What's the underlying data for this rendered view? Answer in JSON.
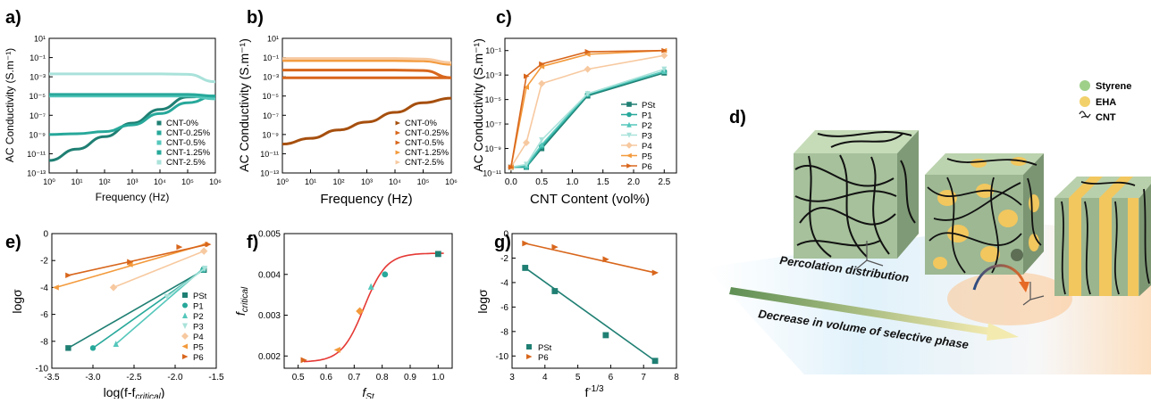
{
  "colors": {
    "teal_dark": "#1f7f73",
    "teal": "#27a89a",
    "teal_light": "#55c7bb",
    "teal_pale": "#a9e2da",
    "peach": "#f7c9a0",
    "orange": "#f39a3c",
    "brown": "#a64f0e",
    "orange_dark": "#d8661c",
    "styrene": "#9fd08a",
    "eha": "#f2d16b",
    "fit_red": "#e53935"
  },
  "panels": {
    "a": {
      "label": "a)",
      "ylabel": "AC Conductivity (S.m⁻¹)",
      "xlabel": "Frequency (Hz)",
      "xticks": [
        "10⁰",
        "10¹",
        "10²",
        "10³",
        "10⁴",
        "10⁵",
        "10⁶"
      ],
      "yticks": [
        "10¹",
        "10⁻¹",
        "10⁻³",
        "10⁻⁵",
        "10⁻⁷",
        "10⁻⁹",
        "10⁻¹¹",
        "10⁻¹³"
      ],
      "legend": [
        "CNT-0%",
        "CNT-0.25%",
        "CNT-0.5%",
        "CNT-1.25%",
        "CNT-2.5%"
      ]
    },
    "b": {
      "label": "b)",
      "ylabel": "AC Conductivity (S.m⁻¹)",
      "xlabel": "Frequency (Hz)",
      "xticks": [
        "10⁰",
        "10¹",
        "10²",
        "10³",
        "10⁴",
        "10⁵",
        "10⁶"
      ],
      "yticks": [
        "10¹",
        "10⁻¹",
        "10⁻³",
        "10⁻⁵",
        "10⁻⁷",
        "10⁻⁹",
        "10⁻¹¹",
        "10⁻¹³"
      ],
      "legend": [
        "CNT-0%",
        "CNT-0.25%",
        "CNT-0.5%",
        "CNT-1.25%",
        "CNT-2.5%"
      ]
    },
    "c": {
      "label": "c)",
      "ylabel": "AC Conductivity (S.m⁻¹)",
      "xlabel": "CNT Content (vol%)",
      "xticks": [
        "0.0",
        "0.5",
        "1.0",
        "1.5",
        "2.0",
        "2.5"
      ],
      "yticks": [
        "10⁻¹",
        "10⁻³",
        "10⁻⁵",
        "10⁻⁷",
        "10⁻⁹",
        "10⁻¹¹"
      ],
      "legend": [
        "PSt",
        "P1",
        "P2",
        "P3",
        "P4",
        "P5",
        "P6"
      ]
    },
    "d": {
      "label": "d)",
      "legend": [
        "Styrene",
        "EHA",
        "CNT"
      ],
      "text_percolation": "Percolation distribution",
      "text_decrease": "Decrease in volume of selective phase"
    },
    "e": {
      "label": "e)",
      "ylabel": "logσ",
      "xlabel": "log(f-f",
      "xlabel_sub": "critical",
      "xlabel_end": ")",
      "xticks": [
        "-3.5",
        "-3.0",
        "-2.5",
        "-2.0",
        "-1.5"
      ],
      "yticks": [
        "0",
        "-2",
        "-4",
        "-6",
        "-8",
        "-10"
      ],
      "legend": [
        "PSt",
        "P1",
        "P2",
        "P3",
        "P4",
        "P5",
        "P6"
      ]
    },
    "f": {
      "label": "f)",
      "ylabel": "f",
      "ylabel_sub": "critical",
      "xlabel": "f",
      "xlabel_sub": "St",
      "xticks": [
        "0.5",
        "0.6",
        "0.7",
        "0.8",
        "0.9",
        "1.0"
      ],
      "yticks": [
        "0.005",
        "0.004",
        "0.003",
        "0.002"
      ]
    },
    "g": {
      "label": "g)",
      "ylabel": "logσ",
      "xlabel": "f",
      "xlabel_sup": "-1/3",
      "xticks": [
        "3",
        "4",
        "5",
        "6",
        "7",
        "8"
      ],
      "yticks": [
        "0",
        "-2",
        "-4",
        "-6",
        "-8",
        "-10"
      ],
      "legend": [
        "PSt",
        "P6"
      ]
    }
  },
  "chart_data": [
    {
      "panel": "a",
      "type": "line",
      "xscale": "log",
      "yscale": "log",
      "xlim": [
        1,
        1000000
      ],
      "ylim": [
        1e-13,
        10
      ],
      "series": [
        {
          "name": "CNT-0%",
          "x": [
            1,
            10,
            100,
            1000,
            10000,
            100000,
            1000000
          ],
          "y": [
            2e-12,
            3e-11,
            6e-10,
            1.5e-08,
            4e-07,
            8e-06,
            1e-05
          ]
        },
        {
          "name": "CNT-0.25%",
          "x": [
            1,
            10,
            100,
            1000,
            10000,
            100000,
            1000000
          ],
          "y": [
            1e-09,
            1.2e-09,
            2e-09,
            1e-08,
            1.5e-07,
            2e-06,
            1e-05
          ]
        },
        {
          "name": "CNT-0.5%",
          "x": [
            1,
            10,
            100,
            1000,
            10000,
            100000,
            1000000
          ],
          "y": [
            1e-05,
            1e-05,
            1e-05,
            1e-05,
            1e-05,
            1e-05,
            5e-06
          ]
        },
        {
          "name": "CNT-1.25%",
          "x": [
            1,
            10,
            100,
            1000,
            10000,
            100000,
            1000000
          ],
          "y": [
            1.5e-05,
            1.5e-05,
            1.5e-05,
            1.5e-05,
            1.5e-05,
            1.5e-05,
            1e-05
          ]
        },
        {
          "name": "CNT-2.5%",
          "x": [
            1,
            10,
            100,
            1000,
            10000,
            100000,
            1000000
          ],
          "y": [
            0.002,
            0.002,
            0.002,
            0.002,
            0.002,
            0.0018,
            0.0003
          ]
        }
      ]
    },
    {
      "panel": "b",
      "type": "line",
      "xscale": "log",
      "yscale": "log",
      "xlim": [
        1,
        1000000
      ],
      "ylim": [
        1e-13,
        10
      ],
      "series": [
        {
          "name": "CNT-0%",
          "x": [
            1,
            10,
            100,
            1000,
            10000,
            100000,
            1000000
          ],
          "y": [
            1e-10,
            4e-10,
            3e-09,
            2e-08,
            2e-07,
            2e-06,
            6e-06
          ]
        },
        {
          "name": "CNT-0.25%",
          "x": [
            1,
            10,
            100,
            1000,
            10000,
            100000,
            1000000
          ],
          "y": [
            0.0008,
            0.0008,
            0.0008,
            0.0008,
            0.0008,
            0.0008,
            0.0008
          ]
        },
        {
          "name": "CNT-0.5%",
          "x": [
            1,
            10,
            100,
            1000,
            10000,
            100000,
            1000000
          ],
          "y": [
            0.005,
            0.005,
            0.005,
            0.005,
            0.005,
            0.0045,
            0.0008
          ]
        },
        {
          "name": "CNT-1.25%",
          "x": [
            1,
            10,
            100,
            1000,
            10000,
            100000,
            1000000
          ],
          "y": [
            0.05,
            0.05,
            0.05,
            0.05,
            0.05,
            0.045,
            0.02
          ]
        },
        {
          "name": "CNT-2.5%",
          "x": [
            1,
            10,
            100,
            1000,
            10000,
            100000,
            1000000
          ],
          "y": [
            0.08,
            0.08,
            0.08,
            0.08,
            0.08,
            0.07,
            0.03
          ]
        }
      ]
    },
    {
      "panel": "c",
      "type": "line",
      "xscale": "linear",
      "yscale": "log",
      "xlim": [
        -0.1,
        2.7
      ],
      "ylim": [
        1e-11,
        1
      ],
      "x": [
        0,
        0.25,
        0.5,
        1.25,
        2.5
      ],
      "series": [
        {
          "name": "PSt",
          "y": [
            3e-11,
            3e-11,
            1e-09,
            2e-05,
            0.0015
          ]
        },
        {
          "name": "P1",
          "y": [
            3e-11,
            3e-11,
            1.5e-09,
            2.5e-05,
            0.002
          ]
        },
        {
          "name": "P2",
          "y": [
            3e-11,
            4e-11,
            2e-09,
            3e-05,
            0.002
          ]
        },
        {
          "name": "P3",
          "y": [
            3e-11,
            5e-11,
            5e-09,
            3e-05,
            0.003
          ]
        },
        {
          "name": "P4",
          "y": [
            3e-11,
            3e-09,
            0.0002,
            0.003,
            0.04
          ]
        },
        {
          "name": "P5",
          "y": [
            3e-11,
            0.0001,
            0.005,
            0.05,
            0.1
          ]
        },
        {
          "name": "P6",
          "y": [
            3e-11,
            0.0008,
            0.008,
            0.08,
            0.1
          ]
        }
      ]
    },
    {
      "panel": "e",
      "type": "scatter",
      "xlim": [
        -3.5,
        -1.5
      ],
      "ylim": [
        -10,
        0
      ],
      "series": [
        {
          "name": "PSt",
          "x": [
            -3.3,
            -1.65
          ],
          "y": [
            -8.5,
            -2.7
          ]
        },
        {
          "name": "P1",
          "x": [
            -3.0,
            -1.66
          ],
          "y": [
            -8.5,
            -2.7
          ]
        },
        {
          "name": "P2",
          "x": [
            -2.72,
            -1.66
          ],
          "y": [
            -8.2,
            -2.6
          ]
        },
        {
          "name": "P3",
          "x": [
            -2.1,
            -1.64
          ],
          "y": [
            -4.7,
            -2.6
          ]
        },
        {
          "name": "P4",
          "x": [
            -2.75,
            -1.65
          ],
          "y": [
            -4.0,
            -1.3
          ]
        },
        {
          "name": "P5",
          "x": [
            -3.45,
            -2.55,
            -1.64
          ],
          "y": [
            -4.0,
            -2.3,
            -0.8
          ]
        },
        {
          "name": "P6",
          "x": [
            -3.3,
            -2.55,
            -1.95,
            -1.6
          ],
          "y": [
            -3.1,
            -2.1,
            -1.0,
            -0.8
          ]
        }
      ]
    },
    {
      "panel": "f",
      "type": "scatter",
      "xlim": [
        0.45,
        1.05
      ],
      "ylim": [
        0.0017,
        0.005
      ],
      "x": [
        0.52,
        0.64,
        0.72,
        0.76,
        0.81,
        1.0
      ],
      "y": [
        0.0019,
        0.00215,
        0.0031,
        0.0037,
        0.004,
        0.0045
      ]
    },
    {
      "panel": "g",
      "type": "scatter",
      "xlim": [
        3,
        8
      ],
      "ylim": [
        -11,
        0
      ],
      "series": [
        {
          "name": "PSt",
          "x": [
            3.4,
            4.3,
            5.85,
            7.35
          ],
          "y": [
            -2.8,
            -4.7,
            -8.3,
            -10.4
          ]
        },
        {
          "name": "P6",
          "x": [
            3.4,
            4.3,
            5.85,
            7.35
          ],
          "y": [
            -0.8,
            -1.1,
            -2.1,
            -3.2
          ]
        }
      ]
    }
  ]
}
